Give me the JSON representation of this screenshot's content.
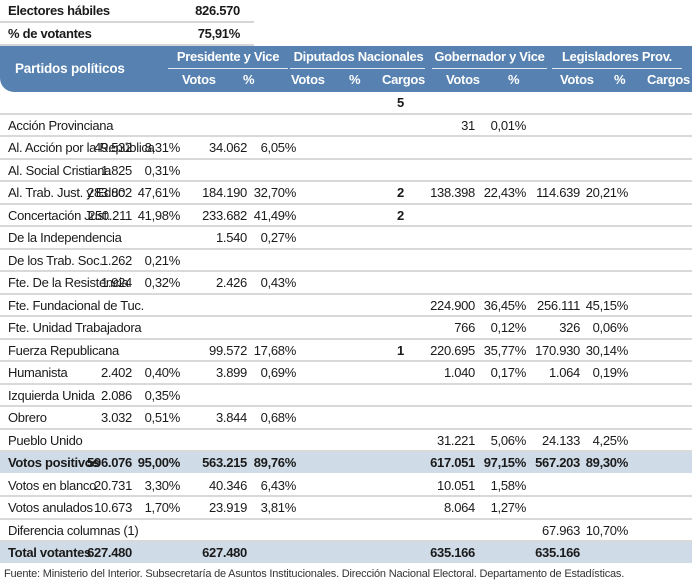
{
  "summary": {
    "electores_label": "Electores hábiles",
    "electores_value": "826.570",
    "votantes_label": "% de votantes",
    "votantes_value": "75,91%"
  },
  "header": {
    "parties_label": "Partidos políticos",
    "groups": {
      "presidente": "Presidente y Vice",
      "diputados": "Diputados Nacionales",
      "gobernador": "Gobernador y Vice",
      "legisladores": "Legisladores Prov."
    },
    "sub": {
      "votos": "Votos",
      "pct": "%",
      "cargos": "Cargos"
    }
  },
  "colors": {
    "header_bg": "#5681b0",
    "total_row_bg": "#cfdbe7",
    "divider": "#d9d9d9"
  },
  "rows": [
    {
      "name": "",
      "pv": "",
      "pp": "",
      "dv": "",
      "dp": "",
      "dc": "5",
      "gv": "",
      "gp": "",
      "lv": "",
      "lp": "",
      "lc": "",
      "type": "cargos"
    },
    {
      "name": "Acción Provinciana",
      "pv": "",
      "pp": "",
      "dv": "",
      "dp": "",
      "dc": "",
      "gv": "31",
      "gp": "0,01%",
      "lv": "",
      "lp": "",
      "lc": ""
    },
    {
      "name": "Al. Acción por la República",
      "pv": "49.532",
      "pp": "8,31%",
      "dv": "34.062",
      "dp": "6,05%",
      "dc": "",
      "gv": "",
      "gp": "",
      "lv": "",
      "lp": "",
      "lc": ""
    },
    {
      "name": "Al. Social Cristiana",
      "pv": "1.825",
      "pp": "0,31%",
      "dv": "",
      "dp": "",
      "dc": "",
      "gv": "",
      "gp": "",
      "lv": "",
      "lp": "",
      "lc": ""
    },
    {
      "name": "Al. Trab. Just. y Educ.",
      "pv": "283.802",
      "pp": "47,61%",
      "dv": "184.190",
      "dp": "32,70%",
      "dc": "2",
      "gv": "138.398",
      "gp": "22,43%",
      "lv": "114.639",
      "lp": "20,21%",
      "lc": ""
    },
    {
      "name": "Concertación Just.",
      "pv": "250.211",
      "pp": "41,98%",
      "dv": "233.682",
      "dp": "41,49%",
      "dc": "2",
      "gv": "",
      "gp": "",
      "lv": "",
      "lp": "",
      "lc": ""
    },
    {
      "name": "De la Independencia",
      "pv": "",
      "pp": "",
      "dv": "1.540",
      "dp": "0,27%",
      "dc": "",
      "gv": "",
      "gp": "",
      "lv": "",
      "lp": "",
      "lc": ""
    },
    {
      "name": "De los Trab. Soc.",
      "pv": "1.262",
      "pp": "0,21%",
      "dv": "",
      "dp": "",
      "dc": "",
      "gv": "",
      "gp": "",
      "lv": "",
      "lp": "",
      "lc": ""
    },
    {
      "name": "Fte. De la Resistencia",
      "pv": "1.924",
      "pp": "0,32%",
      "dv": "2.426",
      "dp": "0,43%",
      "dc": "",
      "gv": "",
      "gp": "",
      "lv": "",
      "lp": "",
      "lc": ""
    },
    {
      "name": "Fte. Fundacional de Tuc.",
      "pv": "",
      "pp": "",
      "dv": "",
      "dp": "",
      "dc": "",
      "gv": "224.900",
      "gp": "36,45%",
      "lv": "256.111",
      "lp": "45,15%",
      "lc": ""
    },
    {
      "name": "Fte. Unidad Trabajadora",
      "pv": "",
      "pp": "",
      "dv": "",
      "dp": "",
      "dc": "",
      "gv": "766",
      "gp": "0,12%",
      "lv": "326",
      "lp": "0,06%",
      "lc": ""
    },
    {
      "name": "Fuerza Republicana",
      "pv": "",
      "pp": "",
      "dv": "99.572",
      "dp": "17,68%",
      "dc": "1",
      "gv": "220.695",
      "gp": "35,77%",
      "lv": "170.930",
      "lp": "30,14%",
      "lc": ""
    },
    {
      "name": "Humanista",
      "pv": "2.402",
      "pp": "0,40%",
      "dv": "3.899",
      "dp": "0,69%",
      "dc": "",
      "gv": "1.040",
      "gp": "0,17%",
      "lv": "1.064",
      "lp": "0,19%",
      "lc": ""
    },
    {
      "name": "Izquierda Unida",
      "pv": "2.086",
      "pp": "0,35%",
      "dv": "",
      "dp": "",
      "dc": "",
      "gv": "",
      "gp": "",
      "lv": "",
      "lp": "",
      "lc": ""
    },
    {
      "name": "Obrero",
      "pv": "3.032",
      "pp": "0,51%",
      "dv": "3.844",
      "dp": "0,68%",
      "dc": "",
      "gv": "",
      "gp": "",
      "lv": "",
      "lp": "",
      "lc": ""
    },
    {
      "name": "Pueblo Unido",
      "pv": "",
      "pp": "",
      "dv": "",
      "dp": "",
      "dc": "",
      "gv": "31.221",
      "gp": "5,06%",
      "lv": "24.133",
      "lp": "4,25%",
      "lc": ""
    },
    {
      "name": "Votos positivos",
      "pv": "596.076",
      "pp": "95,00%",
      "dv": "563.215",
      "dp": "89,76%",
      "dc": "",
      "gv": "617.051",
      "gp": "97,15%",
      "lv": "567.203",
      "lp": "89,30%",
      "lc": "",
      "type": "total"
    },
    {
      "name": "Votos en blanco",
      "pv": "20.731",
      "pp": "3,30%",
      "dv": "40.346",
      "dp": "6,43%",
      "dc": "",
      "gv": "10.051",
      "gp": "1,58%",
      "lv": "",
      "lp": "",
      "lc": ""
    },
    {
      "name": "Votos anulados",
      "pv": "10.673",
      "pp": "1,70%",
      "dv": "23.919",
      "dp": "3,81%",
      "dc": "",
      "gv": "8.064",
      "gp": "1,27%",
      "lv": "",
      "lp": "",
      "lc": ""
    },
    {
      "name": "Diferencia columnas (1)",
      "pv": "",
      "pp": "",
      "dv": "",
      "dp": "",
      "dc": "",
      "gv": "",
      "gp": "",
      "lv": "67.963",
      "lp": "10,70%",
      "lc": ""
    },
    {
      "name": "Total votantes",
      "pv": "627.480",
      "pp": "",
      "dv": "627.480",
      "dp": "",
      "dc": "",
      "gv": "635.166",
      "gp": "",
      "lv": "635.166",
      "lp": "",
      "lc": "",
      "type": "total"
    }
  ],
  "footer": "Fuente: Ministerio del Interior. Subsecretaría de Asuntos Institucionales. Dirección Nacional Electoral. Departamento de Estadísticas."
}
